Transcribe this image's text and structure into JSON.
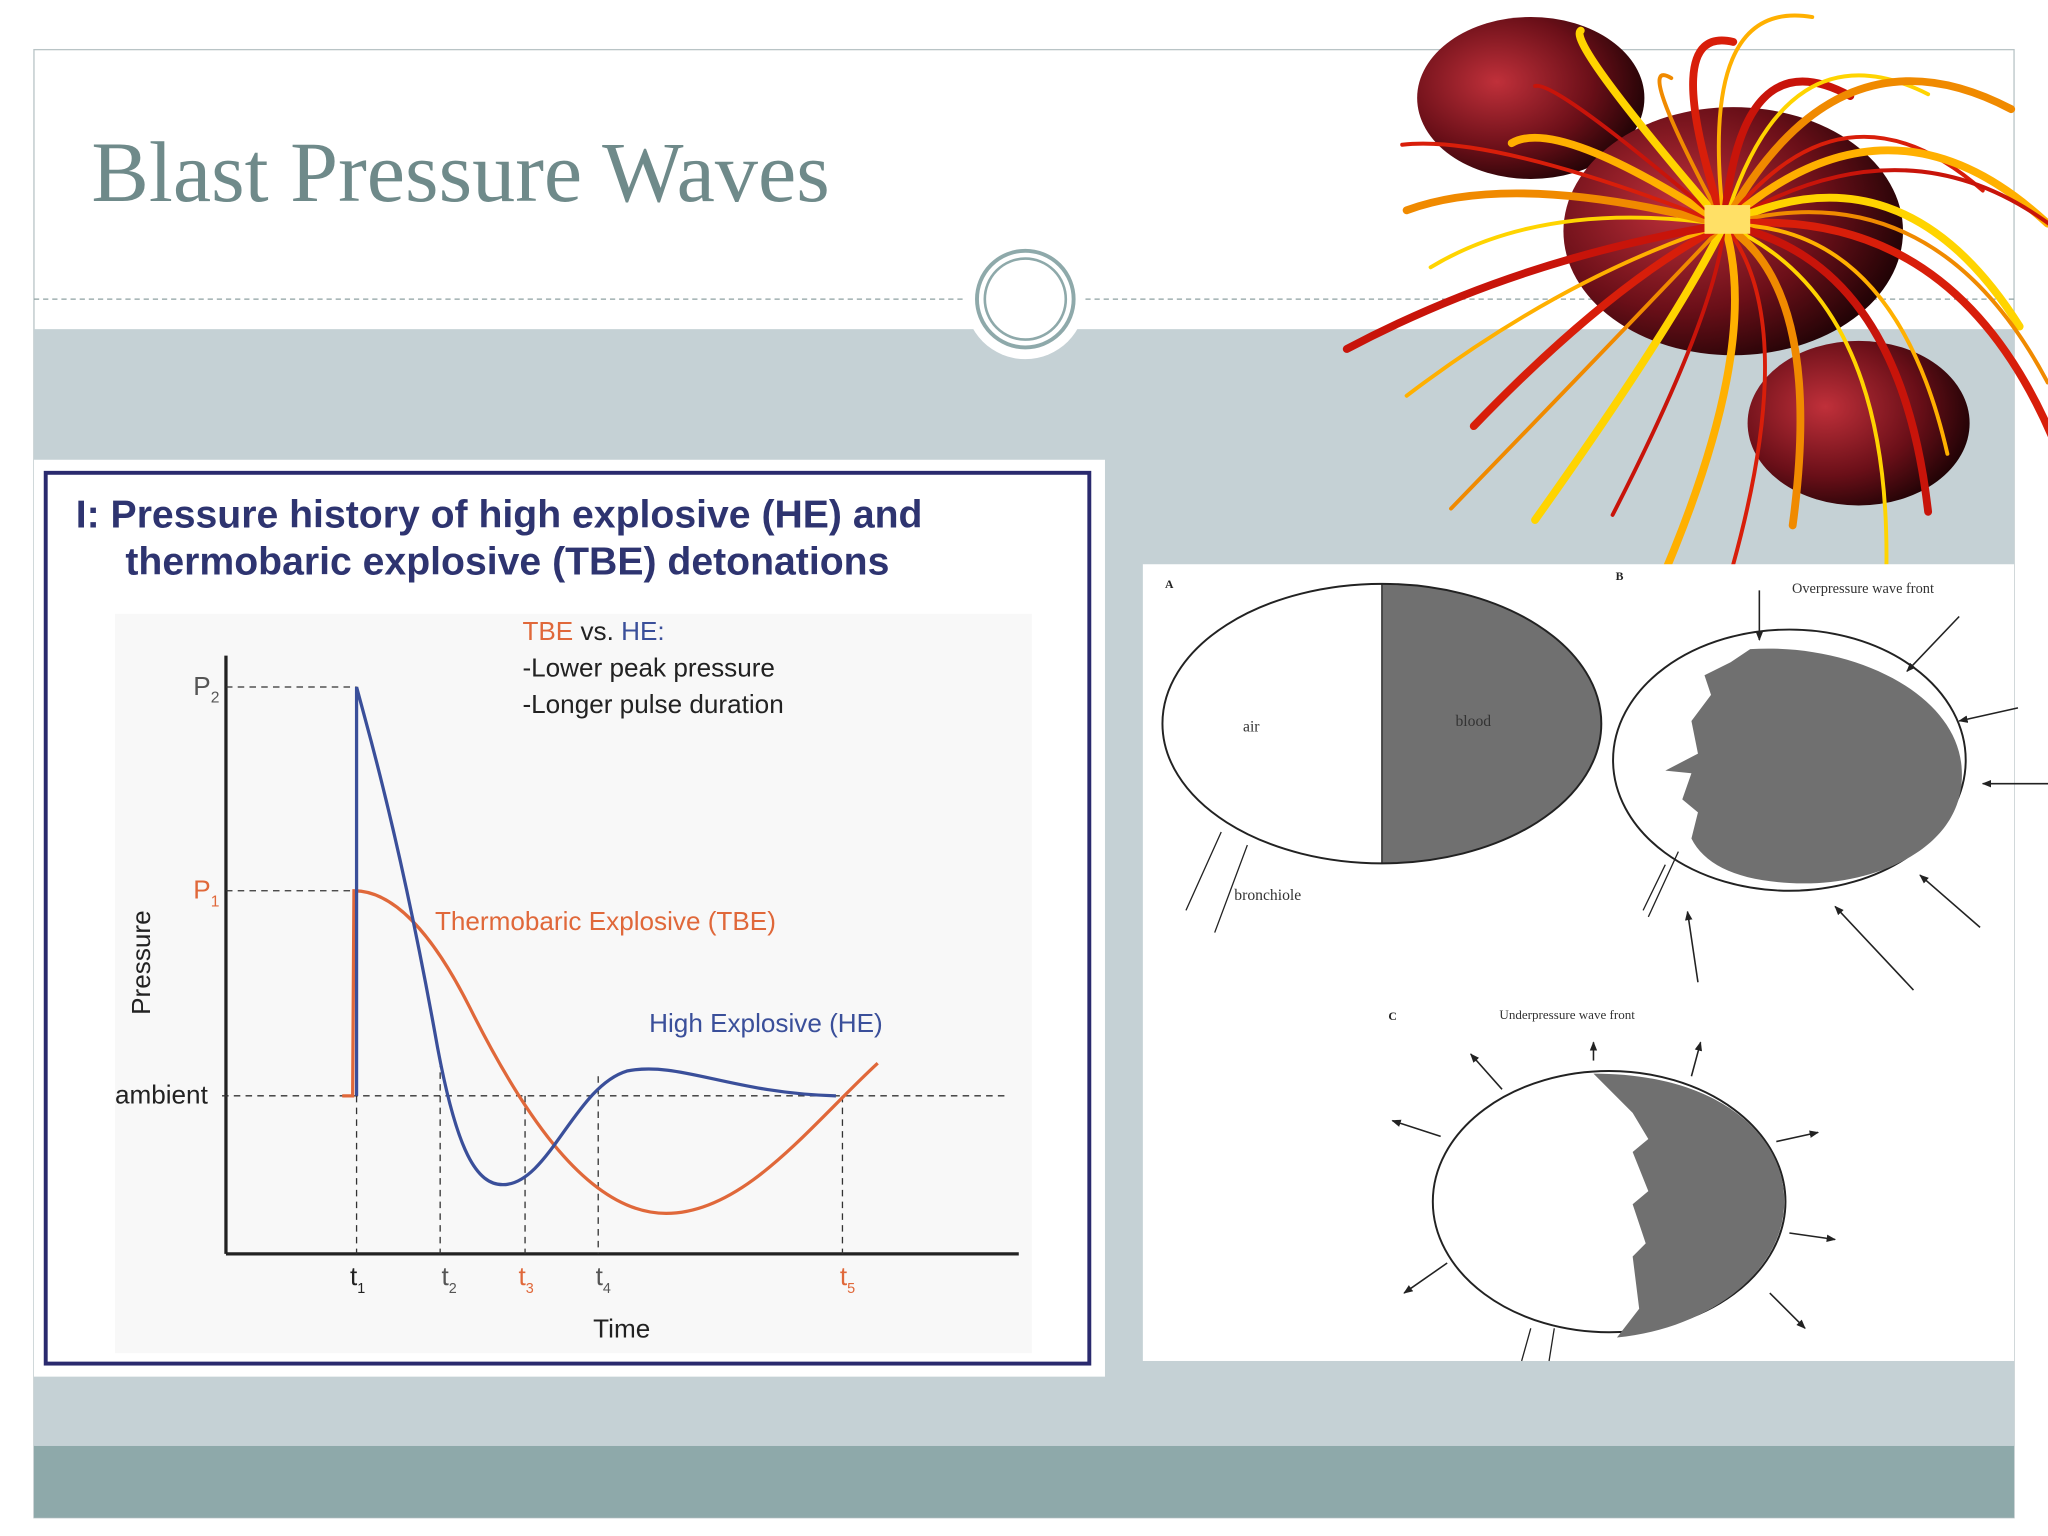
{
  "slide": {
    "title": "Blast Pressure Waves"
  },
  "figure1": {
    "title_lines": [
      "I: Pressure history of high explosive (HE) and",
      "thermobaric explosive (TBE) detonations"
    ],
    "comparison": {
      "tbe": "TBE",
      "vs": "vs.",
      "he": "HE:",
      "points": [
        "-Lower peak pressure",
        "-Longer pulse duration"
      ]
    },
    "y_axis_label": "Pressure",
    "x_axis_label": "Time",
    "ambient": "ambient",
    "pressure_labels": [
      {
        "main": "P",
        "sub": "2"
      },
      {
        "main": "P",
        "sub": "1"
      }
    ],
    "time_labels": [
      {
        "main": "t",
        "sub": "1"
      },
      {
        "main": "t",
        "sub": "2"
      },
      {
        "main": "t",
        "sub": "3"
      },
      {
        "main": "t",
        "sub": "4"
      },
      {
        "main": "t",
        "sub": "5"
      }
    ],
    "curve_labels": {
      "tbe": "Thermobaric Explosive (TBE)",
      "he": "High Explosive (HE)"
    }
  },
  "figure2": {
    "panels": [
      "A",
      "B",
      "C"
    ],
    "air": "air",
    "blood": "blood",
    "bronchiole": "bronchiole",
    "overpressure": "Overpressure wave front",
    "underpressure": "Underpressure wave front"
  }
}
